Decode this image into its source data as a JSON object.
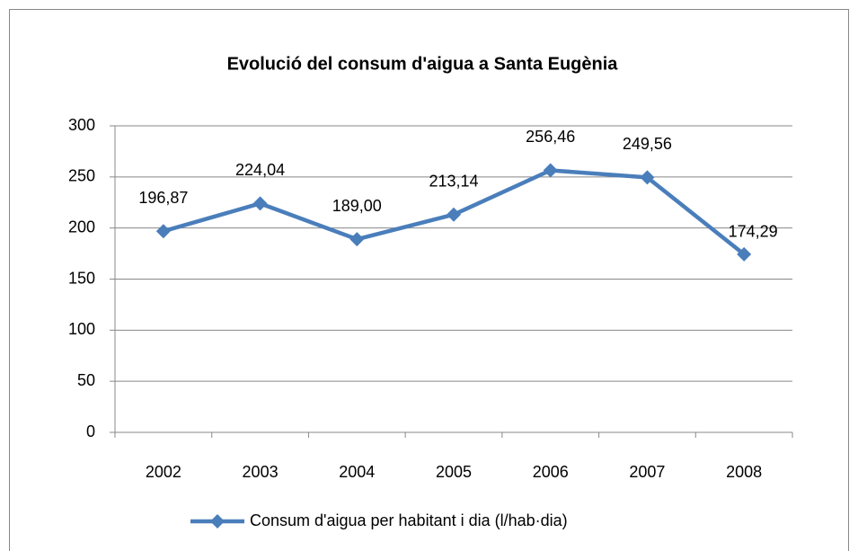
{
  "chart_data": {
    "type": "line",
    "title": "Evolució del consum d'aigua a Santa Eugènia",
    "categories": [
      "2002",
      "2003",
      "2004",
      "2005",
      "2006",
      "2007",
      "2008"
    ],
    "series": [
      {
        "name": "Consum d'aigua per habitant i dia (l/hab·dia)",
        "color": "#4a7ebb",
        "values": [
          196.87,
          224.04,
          189.0,
          213.14,
          256.46,
          249.56,
          174.29
        ],
        "value_labels": [
          "196,87",
          "224,04",
          "189,00",
          "213,14",
          "256,46",
          "249,56",
          "174,29"
        ]
      }
    ],
    "ylim": [
      0,
      300
    ],
    "yticks": [
      0,
      50,
      100,
      150,
      200,
      250,
      300
    ],
    "grid": true,
    "legend": "bottom"
  }
}
